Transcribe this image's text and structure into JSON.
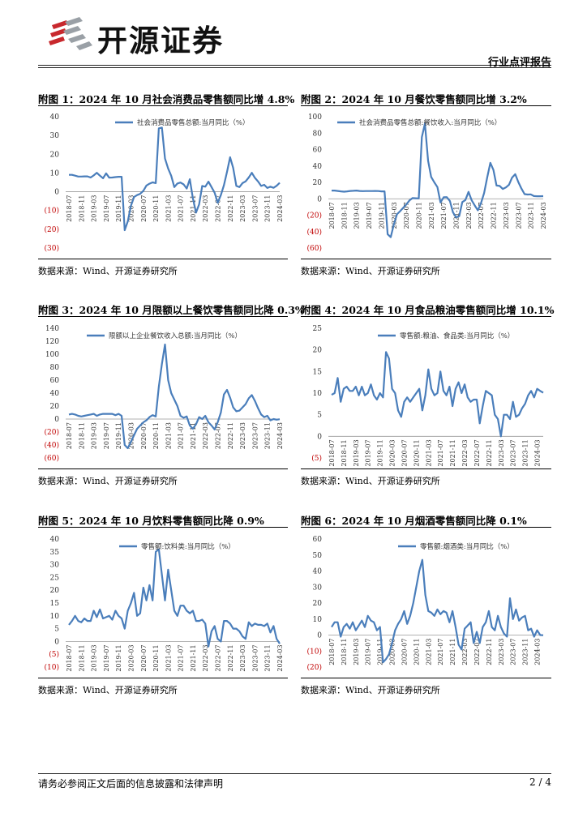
{
  "header": {
    "company": "开源证券",
    "report_type": "行业点评报告",
    "brand_color": "#c8282d"
  },
  "footer": {
    "disclaimer": "请务必参阅正文后面的信息披露和法律声明",
    "page": "2 / 4"
  },
  "source_text": "数据来源：Wind、开源证券研究所",
  "line_color": "#4a7ebb",
  "chart_data": [
    {
      "type": "line",
      "title": "附图 1：2024 年 10 月社会消费品零售额同比增 4.8%",
      "legend": "社会消费品零售总额:当月同比（%）",
      "ylim": [
        -30,
        40
      ],
      "yticks": [
        -30,
        -20,
        -10,
        0,
        10,
        20,
        30,
        40
      ],
      "ytick_labels": [
        "(30)",
        "(20)",
        "(10)",
        "0",
        "10",
        "20",
        "30",
        "40"
      ],
      "x_tick_labels": [
        "2018-07",
        "2018-11",
        "2019-03",
        "2019-07",
        "2019-11",
        "2020-03",
        "2020-07",
        "2020-11",
        "2021-03",
        "2021-07",
        "2021-11",
        "2022-03",
        "2022-07",
        "2022-11",
        "2023-03",
        "2023-07",
        "2023-11",
        "2024-03",
        "2024-07"
      ],
      "x_start": "2018-07",
      "values": [
        9.0,
        9.0,
        8.6,
        8.1,
        8.1,
        8.2,
        8.2,
        7.6,
        8.7,
        10.1,
        8.6,
        7.2,
        9.8,
        7.5,
        7.6,
        7.8,
        8.0,
        8.0,
        -20.5,
        -15.8,
        -7.5,
        -2.8,
        -1.8,
        -1.1,
        0.5,
        3.3,
        4.3,
        5.0,
        4.6,
        33.8,
        34.2,
        17.7,
        12.4,
        8.5,
        2.5,
        4.4,
        4.9,
        3.9,
        1.7,
        6.7,
        -3.5,
        -11.1,
        -6.7,
        3.1,
        2.7,
        5.4,
        2.5,
        -0.5,
        -5.9,
        -1.8,
        3.5,
        10.6,
        18.4,
        12.7,
        3.1,
        2.5,
        4.6,
        5.5,
        7.6,
        10.1,
        7.4,
        5.5,
        3.1,
        3.7,
        2.0,
        2.7,
        2.1,
        3.2,
        4.8
      ]
    },
    {
      "type": "line",
      "title": "附图 2：2024 年 10 月餐饮零售额同比增 3.2%",
      "legend": "社会消费品零售总额:餐饮收入:当月同比（%）",
      "ylim": [
        -60,
        100
      ],
      "yticks": [
        -60,
        -40,
        -20,
        0,
        20,
        40,
        60,
        80,
        100
      ],
      "ytick_labels": [
        "(60)",
        "(40)",
        "(20)",
        "0",
        "20",
        "40",
        "60",
        "80",
        "100"
      ],
      "x_tick_labels": [
        "2018-07",
        "2018-11",
        "2019-03",
        "2019-07",
        "2019-11",
        "2020-03",
        "2020-07",
        "2020-11",
        "2021-03",
        "2021-07",
        "2021-11",
        "2022-03",
        "2022-07",
        "2022-11",
        "2023-03",
        "2023-07",
        "2023-11",
        "2024-03",
        "2024-07"
      ],
      "x_start": "2018-07",
      "values": [
        10.0,
        10.0,
        9.5,
        9.0,
        8.6,
        9.0,
        9.5,
        9.7,
        10.0,
        9.5,
        9.3,
        9.4,
        9.4,
        9.4,
        9.5,
        9.4,
        9.0,
        9.0,
        -43.1,
        -46.8,
        -31.1,
        -18.9,
        -15.2,
        -11.0,
        -7.0,
        -2.0,
        0.8,
        0.6,
        0.4,
        75.0,
        91.6,
        46.4,
        26.6,
        20.0,
        14.3,
        -4.5,
        1.8,
        2.0,
        -2.7,
        -16.4,
        -22.7,
        -21.1,
        -4.0,
        -1.5,
        8.4,
        -1.7,
        -8.2,
        -14.1,
        -5.5,
        7.0,
        25.9,
        43.8,
        35.1,
        16.1,
        15.7,
        12.0,
        13.8,
        17.1,
        25.8,
        30.0,
        20.4,
        12.5,
        5.7,
        5.2,
        5.4,
        3.3,
        3.1,
        3.1,
        3.2
      ]
    },
    {
      "type": "line",
      "title": "附图 3：2024 年 10 月限额以上餐饮零售额同比降 0.3%",
      "legend": "限额以上企业餐饮收入总额:当月同比（%）",
      "ylim": [
        -60,
        140
      ],
      "yticks": [
        -60,
        -40,
        -20,
        0,
        20,
        40,
        60,
        80,
        100,
        120,
        140
      ],
      "ytick_labels": [
        "(60)",
        "(40)",
        "(20)",
        "0",
        "20",
        "40",
        "60",
        "80",
        "100",
        "120",
        "140"
      ],
      "x_tick_labels": [
        "2018-07",
        "2018-11",
        "2019-03",
        "2019-07",
        "2019-11",
        "2020-03",
        "2020-07",
        "2020-11",
        "2021-03",
        "2021-07",
        "2021-11",
        "2022-03",
        "2022-07",
        "2022-11",
        "2023-03",
        "2023-07",
        "2023-11",
        "2024-03",
        "2024-07"
      ],
      "x_start": "2018-07",
      "values": [
        7.0,
        8.0,
        7.0,
        5.0,
        4.0,
        5.0,
        6.0,
        7.0,
        8.0,
        5.0,
        7.0,
        8.0,
        8.0,
        8.0,
        8.0,
        6.0,
        8.0,
        5.0,
        -40.0,
        -45.0,
        -35.0,
        -25.0,
        -15.0,
        -10.0,
        -5.0,
        -2.0,
        3.0,
        6.0,
        4.0,
        50.0,
        85.0,
        115.0,
        60.0,
        40.0,
        30.0,
        20.0,
        5.0,
        2.0,
        4.0,
        -10.0,
        -15.0,
        -8.0,
        3.0,
        0.0,
        5.0,
        -5.0,
        -10.0,
        -16.0,
        -5.0,
        10.0,
        38.0,
        45.0,
        33.0,
        18.0,
        12.0,
        13.0,
        18.0,
        23.0,
        32.0,
        37.0,
        28.0,
        17.0,
        7.0,
        3.0,
        5.0,
        -2.0,
        0.0,
        -1.0,
        -0.3
      ]
    },
    {
      "type": "line",
      "title": "附图 4：2024 年 10 月食品粮油零售额同比增 10.1%",
      "legend": "零售额:粮油、食品类:当月同比（%）",
      "ylim": [
        -5,
        25
      ],
      "yticks": [
        -5,
        0,
        5,
        10,
        15,
        20,
        25
      ],
      "ytick_labels": [
        "(5)",
        "0",
        "5",
        "10",
        "15",
        "20",
        "25"
      ],
      "x_tick_labels": [
        "2018-07",
        "2018-11",
        "2019-03",
        "2019-07",
        "2019-11",
        "2020-03",
        "2020-07",
        "2020-11",
        "2021-03",
        "2021-07",
        "2021-11",
        "2022-03",
        "2022-07",
        "2022-11",
        "2023-03",
        "2023-07",
        "2023-11",
        "2024-03",
        "2024-07"
      ],
      "x_start": "2018-07",
      "values": [
        9.6,
        10.0,
        13.5,
        8.0,
        11.0,
        11.5,
        10.5,
        10.5,
        11.5,
        9.5,
        11.5,
        9.5,
        10.0,
        12.0,
        9.5,
        8.5,
        10.0,
        9.0,
        19.5,
        18.0,
        11.0,
        10.0,
        6.0,
        4.5,
        8.0,
        9.0,
        8.0,
        9.0,
        10.0,
        11.0,
        6.0,
        9.5,
        15.5,
        11.0,
        9.5,
        10.0,
        15.0,
        10.5,
        9.5,
        11.5,
        7.0,
        11.0,
        12.5,
        10.0,
        12.0,
        9.0,
        8.0,
        8.5,
        8.5,
        3.0,
        7.0,
        10.5,
        10.0,
        9.5,
        5.0,
        4.0,
        0.0,
        5.0,
        5.0,
        4.0,
        8.0,
        4.5,
        5.0,
        6.5,
        7.5,
        9.5,
        10.5,
        9.0,
        11.0,
        10.5,
        10.1
      ]
    },
    {
      "type": "line",
      "title": "附图 5：2024 年 10 月饮料零售额同比降 0.9%",
      "legend": "零售额:饮料类:当月同比（%）",
      "ylim": [
        -10,
        40
      ],
      "yticks": [
        -10,
        -5,
        0,
        5,
        10,
        15,
        20,
        25,
        30,
        35,
        40
      ],
      "ytick_labels": [
        "(10)",
        "(5)",
        "0",
        "5",
        "10",
        "15",
        "20",
        "25",
        "30",
        "35",
        "40"
      ],
      "x_tick_labels": [
        "2018-07",
        "2018-11",
        "2019-03",
        "2019-07",
        "2019-11",
        "2020-03",
        "2020-07",
        "2020-11",
        "2021-03",
        "2021-07",
        "2021-11",
        "2022-03",
        "2022-07",
        "2022-11",
        "2023-03",
        "2023-07",
        "2023-11",
        "2024-03",
        "2024-07"
      ],
      "x_start": "2018-07",
      "values": [
        6.5,
        8.0,
        10.0,
        8.0,
        7.5,
        9.0,
        8.0,
        8.0,
        12.0,
        9.5,
        12.5,
        9.0,
        9.5,
        10.0,
        8.5,
        12.0,
        10.0,
        9.0,
        5.0,
        12.0,
        15.0,
        19.0,
        10.0,
        11.0,
        21.0,
        16.0,
        22.0,
        16.0,
        35.0,
        36.0,
        26.0,
        16.0,
        28.0,
        20.0,
        12.0,
        10.0,
        14.0,
        14.0,
        12.0,
        11.0,
        12.0,
        8.0,
        8.0,
        8.5,
        7.0,
        -2.0,
        4.0,
        6.0,
        1.0,
        0.0,
        8.0,
        8.0,
        7.0,
        5.0,
        5.0,
        4.0,
        2.0,
        1.0,
        7.5,
        6.0,
        7.0,
        6.5,
        6.5,
        6.0,
        7.0,
        3.5,
        6.0,
        1.0,
        -0.9
      ]
    },
    {
      "type": "line",
      "title": "附图 6：2024 年 10 月烟酒零售额同比降 0.1%",
      "legend": "零售额:烟酒类:当月同比（%）",
      "ylim": [
        -20,
        60
      ],
      "yticks": [
        -20,
        -10,
        0,
        10,
        20,
        30,
        40,
        50,
        60
      ],
      "ytick_labels": [
        "(20)",
        "(10)",
        "0",
        "10",
        "20",
        "30",
        "40",
        "50",
        "60"
      ],
      "x_tick_labels": [
        "2018-07",
        "2018-11",
        "2019-03",
        "2019-07",
        "2019-11",
        "2020-03",
        "2020-07",
        "2020-11",
        "2021-03",
        "2021-07",
        "2021-11",
        "2022-03",
        "2022-07",
        "2022-11",
        "2023-03",
        "2023-07",
        "2023-11",
        "2024-03",
        "2024-07"
      ],
      "x_start": "2018-07",
      "values": [
        5.0,
        8.0,
        8.0,
        -1.0,
        5.0,
        7.0,
        4.0,
        8.0,
        3.0,
        6.0,
        9.0,
        5.0,
        12.0,
        9.0,
        8.0,
        3.0,
        5.0,
        -17.0,
        -15.0,
        -12.0,
        -5.0,
        3.0,
        7.0,
        10.0,
        15.0,
        7.0,
        12.0,
        20.0,
        30.0,
        40.0,
        47.0,
        25.0,
        15.0,
        14.0,
        12.0,
        16.0,
        13.0,
        15.0,
        14.0,
        8.0,
        15.0,
        5.0,
        -6.0,
        -9.0,
        4.0,
        6.0,
        8.0,
        -5.0,
        2.0,
        -5.0,
        5.0,
        8.0,
        15.0,
        5.0,
        3.0,
        12.0,
        5.0,
        1.0,
        -1.0,
        23.0,
        10.0,
        16.0,
        9.0,
        11.0,
        12.0,
        3.0,
        4.0,
        -1.0,
        3.0,
        0.0,
        -0.1
      ]
    }
  ]
}
